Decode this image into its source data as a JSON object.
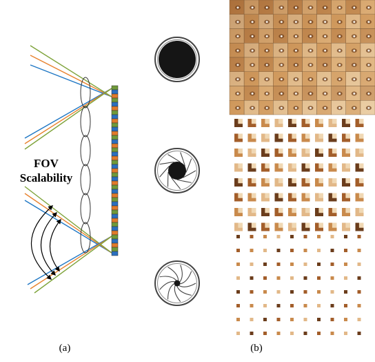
{
  "panel_labels": {
    "left": "(a)",
    "right": "(b)"
  },
  "fov_label": {
    "line1": "FOV",
    "line2": "Scalability"
  },
  "colors": {
    "ray_blue": "#1f77c4",
    "ray_orange": "#e8822e",
    "ray_green": "#7ea33a",
    "sensor_blue": "#2b6fbf",
    "sensor_orange": "#e07a2a",
    "sensor_green": "#6f9a3a",
    "iris_dark": "#151515"
  },
  "iris": [
    {
      "name": "aperture-open"
    },
    {
      "name": "aperture-medium"
    },
    {
      "name": "aperture-small"
    }
  ]
}
